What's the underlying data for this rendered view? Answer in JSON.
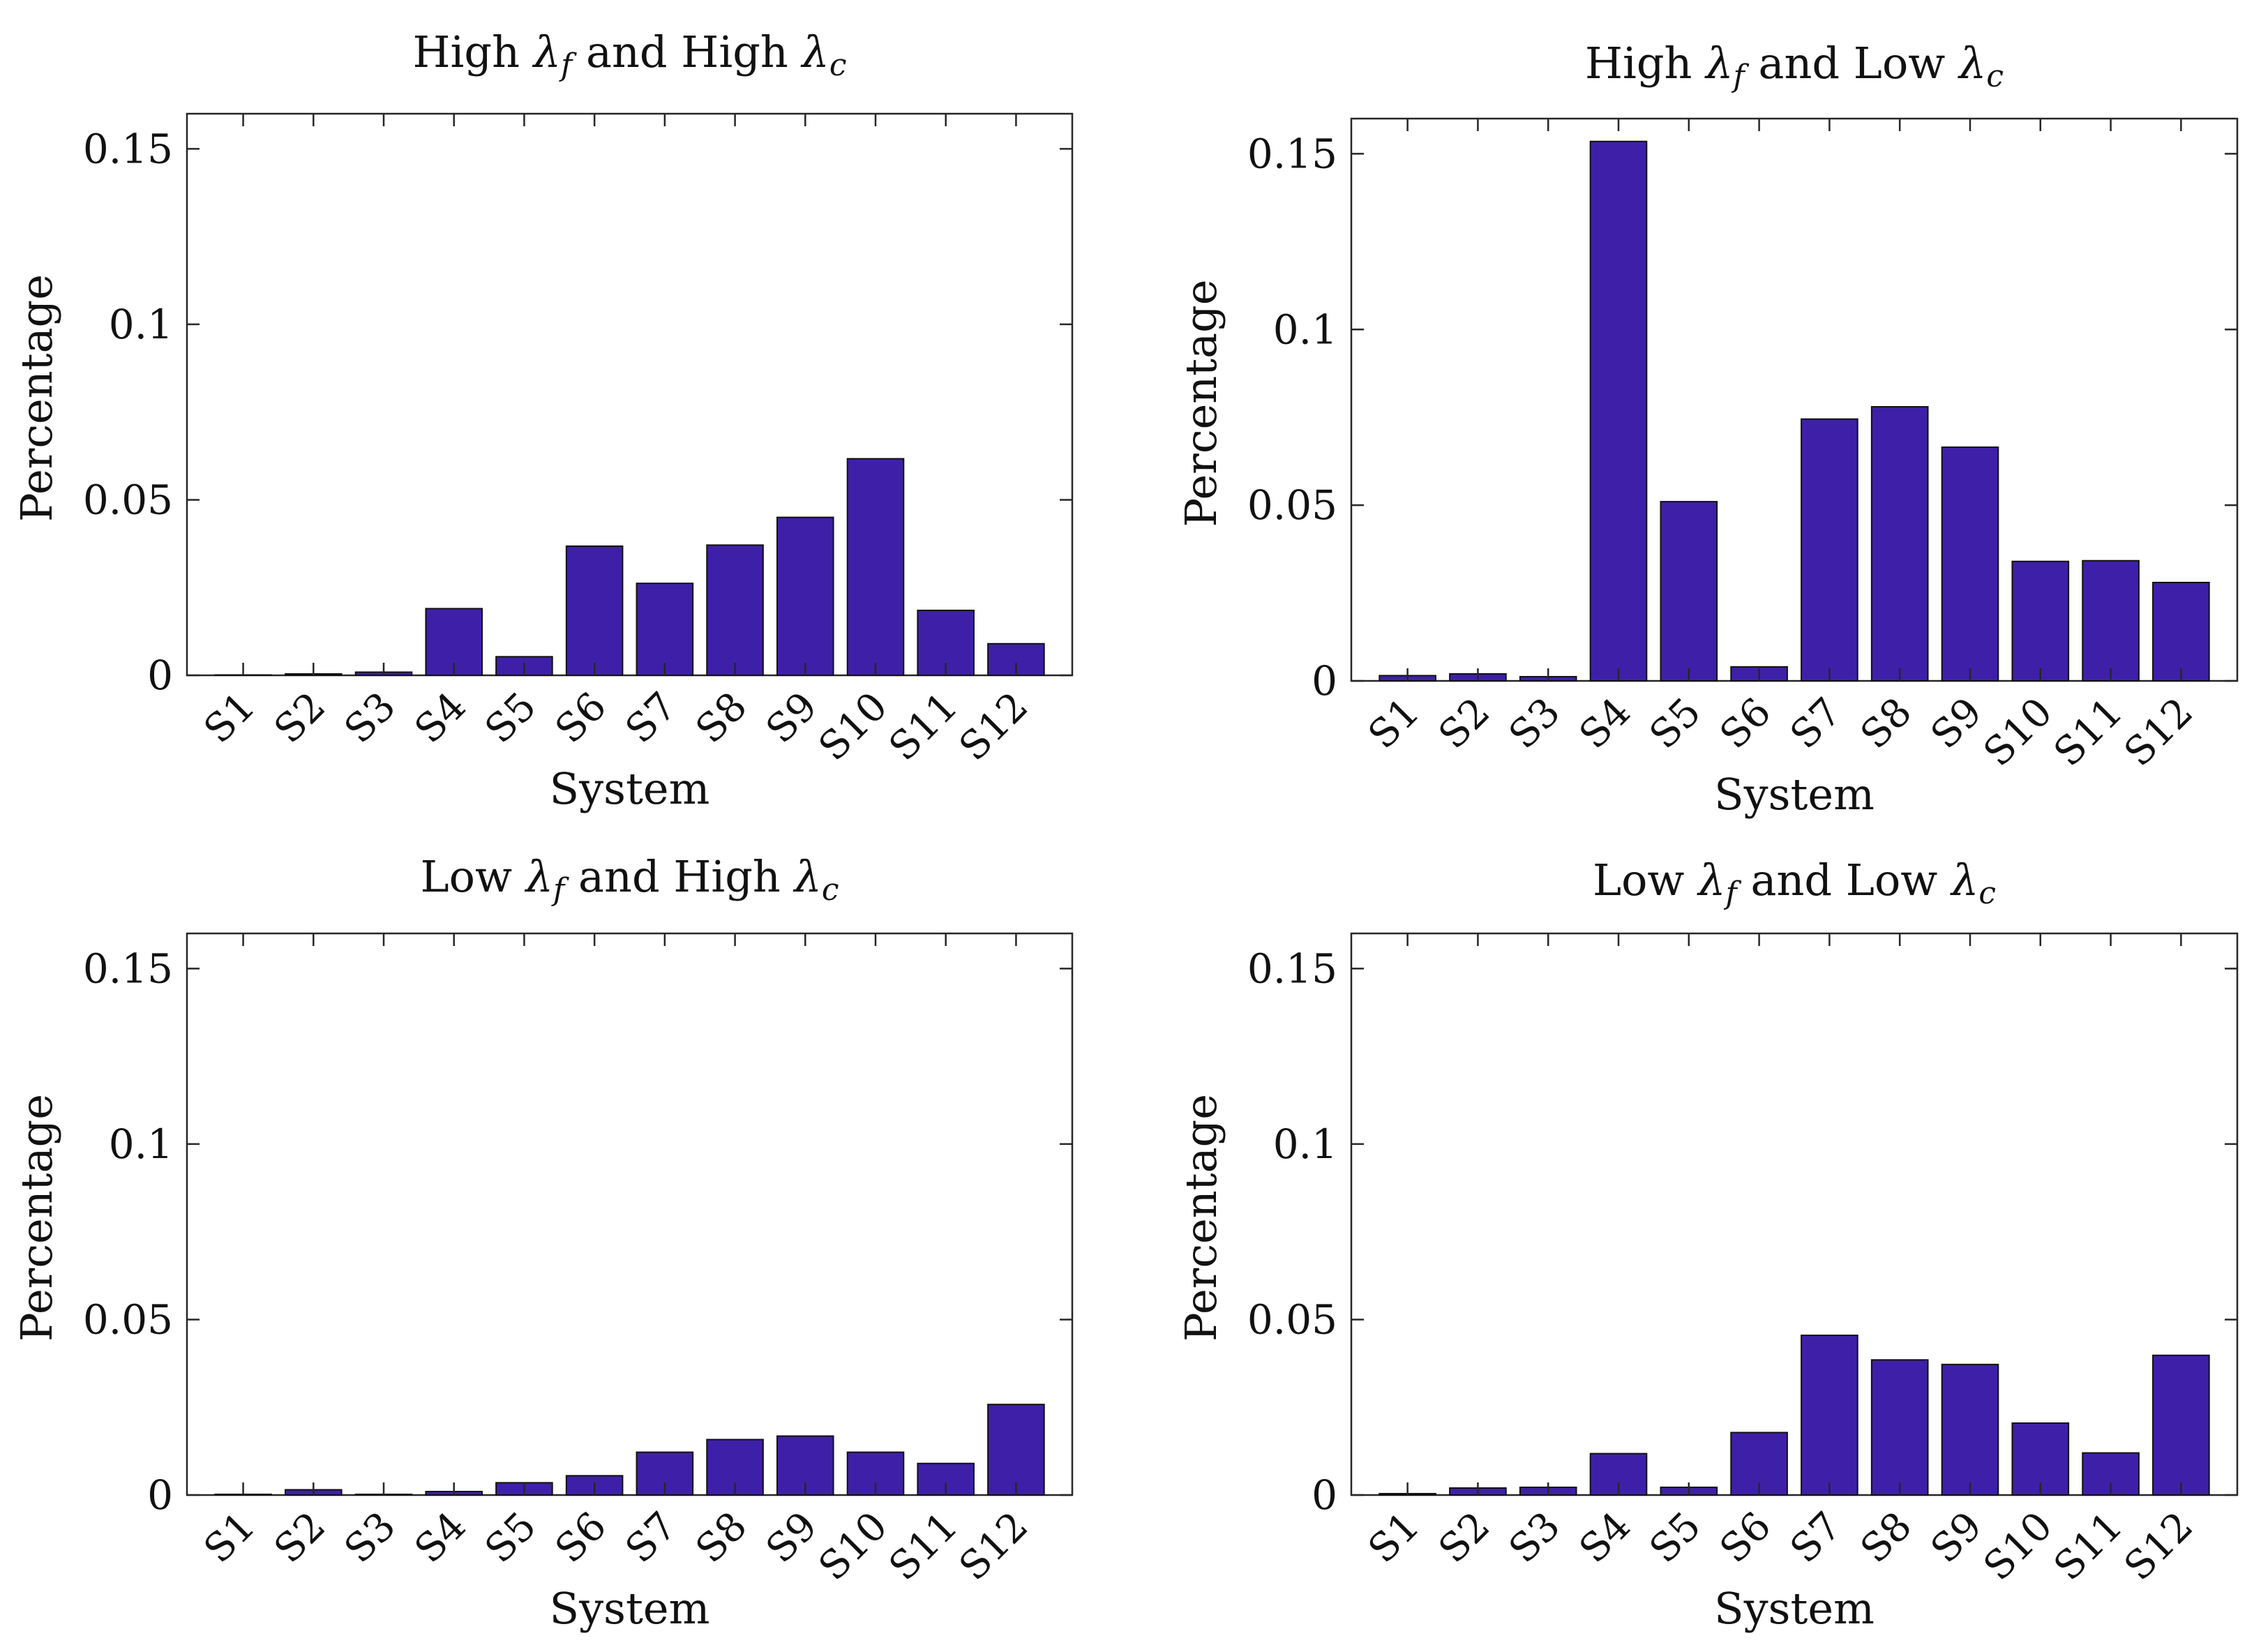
{
  "chart_data": [
    {
      "type": "bar",
      "title": {
        "prefix": "High",
        "sym1": "λ",
        "sub1": "f",
        "middle": "and High",
        "sym2": "λ",
        "sub2": "c"
      },
      "xlabel": "System",
      "ylabel": "Percentage",
      "categories": [
        "S1",
        "S2",
        "S3",
        "S4",
        "S5",
        "S6",
        "S7",
        "S8",
        "S9",
        "S10",
        "S11",
        "S12"
      ],
      "values": [
        0.0001,
        0.0004,
        0.0009,
        0.019,
        0.0053,
        0.0368,
        0.0262,
        0.0371,
        0.045,
        0.0617,
        0.0185,
        0.009
      ],
      "ylim": [
        0,
        0.16
      ],
      "yticks": [
        0,
        0.05,
        0.1,
        0.15
      ],
      "ytick_labels": [
        "0",
        "0.05",
        "0.1",
        "0.15"
      ],
      "bar_color": "#3e20a8"
    },
    {
      "type": "bar",
      "title": {
        "prefix": "High",
        "sym1": "λ",
        "sub1": "f",
        "middle": "and Low",
        "sym2": "λ",
        "sub2": "c"
      },
      "xlabel": "System",
      "ylabel": "Percentage",
      "categories": [
        "S1",
        "S2",
        "S3",
        "S4",
        "S5",
        "S6",
        "S7",
        "S8",
        "S9",
        "S10",
        "S11",
        "S12"
      ],
      "values": [
        0.0015,
        0.002,
        0.0012,
        0.1535,
        0.051,
        0.004,
        0.0745,
        0.078,
        0.0665,
        0.034,
        0.0342,
        0.028
      ],
      "ylim": [
        0,
        0.16
      ],
      "yticks": [
        0,
        0.05,
        0.1,
        0.15
      ],
      "ytick_labels": [
        "0",
        "0.05",
        "0.1",
        "0.15"
      ],
      "bar_color": "#3e20a8"
    },
    {
      "type": "bar",
      "title": {
        "prefix": "Low",
        "sym1": "λ",
        "sub1": "f",
        "middle": "and High",
        "sym2": "λ",
        "sub2": "c"
      },
      "xlabel": "System",
      "ylabel": "Percentage",
      "categories": [
        "S1",
        "S2",
        "S3",
        "S4",
        "S5",
        "S6",
        "S7",
        "S8",
        "S9",
        "S10",
        "S11",
        "S12"
      ],
      "values": [
        0.0002,
        0.0015,
        0.0002,
        0.001,
        0.0035,
        0.0055,
        0.0122,
        0.0158,
        0.0168,
        0.0122,
        0.009,
        0.0258
      ],
      "ylim": [
        0,
        0.16
      ],
      "yticks": [
        0,
        0.05,
        0.1,
        0.15
      ],
      "ytick_labels": [
        "0",
        "0.05",
        "0.1",
        "0.15"
      ],
      "bar_color": "#3e20a8"
    },
    {
      "type": "bar",
      "title": {
        "prefix": "Low",
        "sym1": "λ",
        "sub1": "f",
        "middle": "and Low",
        "sym2": "λ",
        "sub2": "c"
      },
      "xlabel": "System",
      "ylabel": "Percentage",
      "categories": [
        "S1",
        "S2",
        "S3",
        "S4",
        "S5",
        "S6",
        "S7",
        "S8",
        "S9",
        "S10",
        "S11",
        "S12"
      ],
      "values": [
        0.0004,
        0.002,
        0.0022,
        0.0118,
        0.0022,
        0.0178,
        0.0455,
        0.0385,
        0.0372,
        0.0205,
        0.012,
        0.0398
      ],
      "ylim": [
        0,
        0.16
      ],
      "yticks": [
        0,
        0.05,
        0.1,
        0.15
      ],
      "ytick_labels": [
        "0",
        "0.05",
        "0.1",
        "0.15"
      ],
      "bar_color": "#3e20a8"
    }
  ]
}
